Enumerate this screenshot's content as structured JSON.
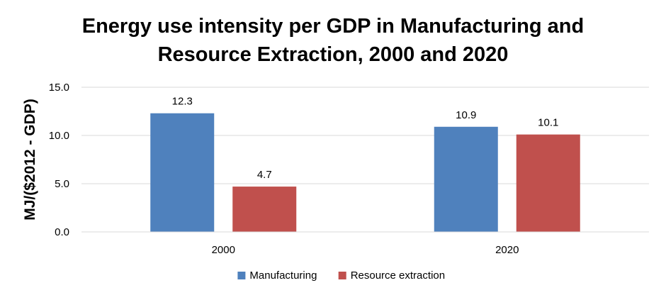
{
  "chart_data": {
    "type": "bar",
    "title_lines": [
      "Energy use intensity per GDP in Manufacturing and",
      "Resource Extraction, 2000 and 2020"
    ],
    "xlabel": "",
    "ylabel": "MJ/($2012 - GDP)",
    "categories": [
      "2000",
      "2020"
    ],
    "series": [
      {
        "name": "Manufacturing",
        "color": "#4f81bd",
        "values": [
          12.3,
          10.9
        ],
        "labels": [
          "12.3",
          "10.9"
        ]
      },
      {
        "name": "Resource extraction",
        "color": "#c0504d",
        "values": [
          4.7,
          10.1
        ],
        "labels": [
          "4.7",
          "10.1"
        ]
      }
    ],
    "ylim": [
      0,
      15
    ],
    "yticks": [
      "0.0",
      "5.0",
      "10.0",
      "15.0"
    ],
    "grid": true,
    "grid_color": "#d9d9d9",
    "legend_position": "bottom"
  }
}
